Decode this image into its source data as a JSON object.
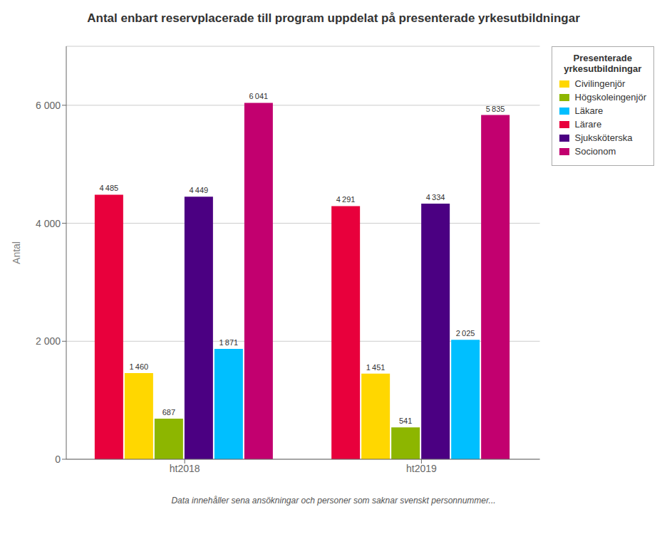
{
  "chart_data": {
    "type": "bar",
    "title": "Antal enbart reservplacerade till program uppdelat på presenterade yrkesutbildningar",
    "ylabel": "Antal",
    "footnote": "Data innehåller sena ansökningar och personer som saknar svenskt personnummer...",
    "legend_title": "Presenterade\nyrkesutbildningar",
    "categories": [
      "ht2018",
      "ht2019"
    ],
    "series": [
      {
        "name": "Lärare",
        "color": "#E8003C",
        "values": [
          4485,
          4291
        ],
        "value_labels": [
          "4 485",
          "4 291"
        ]
      },
      {
        "name": "Civilingenjör",
        "color": "#FFD700",
        "values": [
          1460,
          1451
        ],
        "value_labels": [
          "1 460",
          "1 451"
        ]
      },
      {
        "name": "Högskoleingenjör",
        "color": "#8DB600",
        "values": [
          687,
          541
        ],
        "value_labels": [
          "687",
          "541"
        ]
      },
      {
        "name": "Sjuksköterska",
        "color": "#4B0082",
        "values": [
          4449,
          4334
        ],
        "value_labels": [
          "4 449",
          "4 334"
        ]
      },
      {
        "name": "Läkare",
        "color": "#00BFFF",
        "values": [
          1871,
          2025
        ],
        "value_labels": [
          "1 871",
          "2 025"
        ]
      },
      {
        "name": "Socionom",
        "color": "#C2006F",
        "values": [
          6041,
          5835
        ],
        "value_labels": [
          "6 041",
          "5 835"
        ]
      }
    ],
    "ylim": [
      0,
      7000
    ],
    "yticks": [
      0,
      {
        "value": 2000,
        "label": "2 000"
      },
      {
        "value": 4000,
        "label": "4 000"
      },
      {
        "value": 6000,
        "label": "6 000"
      }
    ],
    "grid": true,
    "legend": "right",
    "data_labels": true
  }
}
